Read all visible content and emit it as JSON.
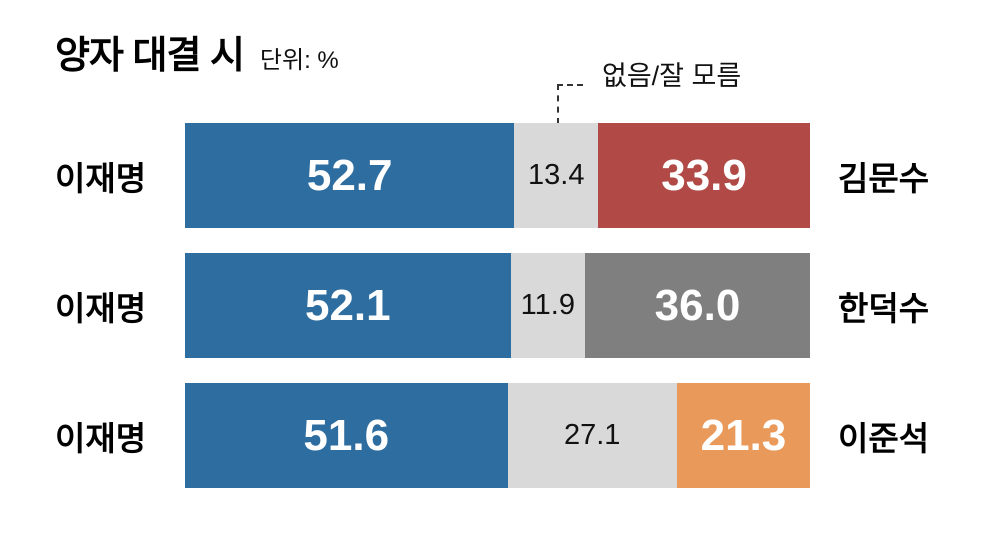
{
  "header": {
    "title": "양자 대결 시",
    "unit_label": "단위: %"
  },
  "legend": {
    "label": "없음/잘 모름"
  },
  "chart_data": {
    "type": "bar",
    "orientation": "horizontal",
    "stacked": true,
    "title": "양자 대결 시",
    "unit": "%",
    "annotation": "없음/잘 모름",
    "axis": {
      "min": 0,
      "max": 100,
      "grid": false
    },
    "colors": {
      "lee_jae_myung_blue": "#2e6d9f",
      "undecided_gray": "#d9d9d9",
      "kim_moon_soo_red": "#b14a46",
      "han_duck_soo_gray": "#7f7f7f",
      "lee_jun_seok_orange": "#e99a5b"
    },
    "rows": [
      {
        "left_label": "이재명",
        "right_label": "김문수",
        "segments": [
          {
            "name": "이재명",
            "value": 52.7,
            "color": "#2e6d9f"
          },
          {
            "name": "없음/잘 모름",
            "value": 13.4,
            "color": "#d9d9d9"
          },
          {
            "name": "김문수",
            "value": 33.9,
            "color": "#b14a46"
          }
        ]
      },
      {
        "left_label": "이재명",
        "right_label": "한덕수",
        "segments": [
          {
            "name": "이재명",
            "value": 52.1,
            "color": "#2e6d9f"
          },
          {
            "name": "없음/잘 모름",
            "value": 11.9,
            "color": "#d9d9d9"
          },
          {
            "name": "한덕수",
            "value": 36.0,
            "color": "#7f7f7f"
          }
        ]
      },
      {
        "left_label": "이재명",
        "right_label": "이준석",
        "segments": [
          {
            "name": "이재명",
            "value": 51.6,
            "color": "#2e6d9f"
          },
          {
            "name": "없음/잘 모름",
            "value": 27.1,
            "color": "#d9d9d9"
          },
          {
            "name": "이준석",
            "value": 21.3,
            "color": "#e99a5b"
          }
        ]
      }
    ]
  }
}
